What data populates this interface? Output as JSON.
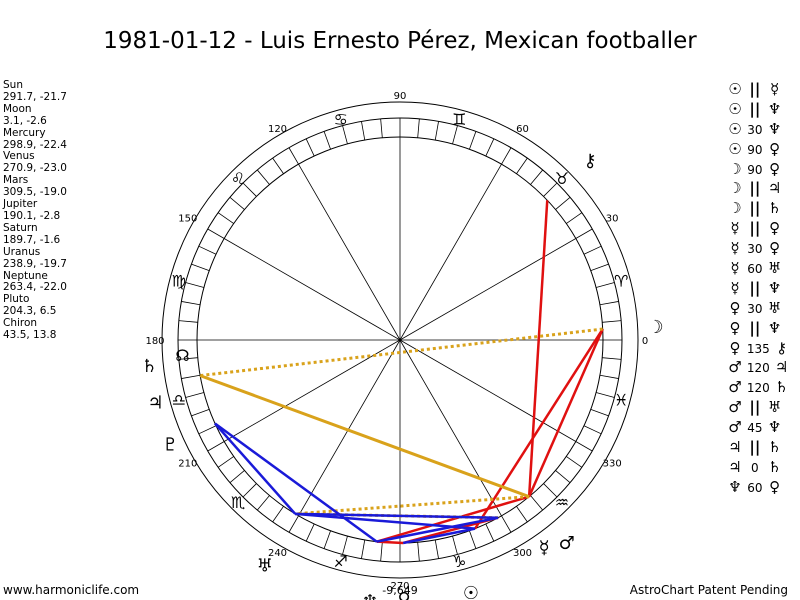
{
  "title": "1981-01-12 - Luis Ernesto Pérez, Mexican footballer",
  "footer_left": "www.harmoniclife.com",
  "footer_right": "AstroChart Patent Pending",
  "degree_labels": [
    "90",
    "60",
    "30",
    "0",
    "330",
    "300",
    "270",
    "240",
    "210",
    "180",
    "150",
    "120"
  ],
  "asc_label": "-9,649",
  "planets": [
    {
      "name": "Sun",
      "coords": "291.7, -21.7",
      "glyph": "☉",
      "lon": 291.7
    },
    {
      "name": "Moon",
      "coords": "3.1, -2.6",
      "glyph": "☽",
      "lon": 3.1
    },
    {
      "name": "Mercury",
      "coords": "298.9, -22.4",
      "glyph": "☿",
      "lon": 298.9
    },
    {
      "name": "Venus",
      "coords": "270.9, -23.0",
      "glyph": "♀",
      "lon": 270.9
    },
    {
      "name": "Mars",
      "coords": "309.5, -19.0",
      "glyph": "♂",
      "lon": 309.5
    },
    {
      "name": "Jupiter",
      "coords": "190.1, -2.8",
      "glyph": "♃",
      "lon": 190.1
    },
    {
      "name": "Saturn",
      "coords": "189.7, -1.6",
      "glyph": "♄",
      "lon": 189.7
    },
    {
      "name": "Uranus",
      "coords": "238.9, -19.7",
      "glyph": "♅",
      "lon": 238.9
    },
    {
      "name": "Neptune",
      "coords": "263.4, -22.0",
      "glyph": "♆",
      "lon": 263.4
    },
    {
      "name": "Pluto",
      "coords": "204.3, 6.5",
      "glyph": "♇",
      "lon": 204.3
    },
    {
      "name": "Chiron",
      "coords": "43.5, 13.8",
      "glyph": "⚷",
      "lon": 43.5
    }
  ],
  "signs": [
    {
      "name": "aries",
      "glyph": "♈"
    },
    {
      "name": "taurus",
      "glyph": "♉"
    },
    {
      "name": "gemini",
      "glyph": "♊"
    },
    {
      "name": "cancer",
      "glyph": "♋"
    },
    {
      "name": "leo",
      "glyph": "♌"
    },
    {
      "name": "virgo",
      "glyph": "♍"
    },
    {
      "name": "libra",
      "glyph": "♎"
    },
    {
      "name": "scorpio",
      "glyph": "♏"
    },
    {
      "name": "sagittarius",
      "glyph": "♐"
    },
    {
      "name": "capricorn",
      "glyph": "♑"
    },
    {
      "name": "aquarius",
      "glyph": "♒"
    },
    {
      "name": "pisces",
      "glyph": "♓"
    }
  ],
  "node_glyph": "☊",
  "aspects": [
    {
      "p1": "☉",
      "aspect": "||",
      "p2": "☿"
    },
    {
      "p1": "☉",
      "aspect": "||",
      "p2": "♆"
    },
    {
      "p1": "☉",
      "aspect": "30",
      "p2": "♆"
    },
    {
      "p1": "☉",
      "aspect": "90",
      "p2": "♀"
    },
    {
      "p1": "☽",
      "aspect": "90",
      "p2": "♀"
    },
    {
      "p1": "☽",
      "aspect": "||",
      "p2": "♃"
    },
    {
      "p1": "☽",
      "aspect": "||",
      "p2": "♄"
    },
    {
      "p1": "☿",
      "aspect": "||",
      "p2": "♀"
    },
    {
      "p1": "☿",
      "aspect": "30",
      "p2": "♀"
    },
    {
      "p1": "☿",
      "aspect": "60",
      "p2": "♅"
    },
    {
      "p1": "☿",
      "aspect": "||",
      "p2": "♆"
    },
    {
      "p1": "♀",
      "aspect": "30",
      "p2": "♅"
    },
    {
      "p1": "♀",
      "aspect": "||",
      "p2": "♆"
    },
    {
      "p1": "♀",
      "aspect": "135",
      "p2": "⚷"
    },
    {
      "p1": "♂",
      "aspect": "120",
      "p2": "♃"
    },
    {
      "p1": "♂",
      "aspect": "120",
      "p2": "♄"
    },
    {
      "p1": "♂",
      "aspect": "||",
      "p2": "♅"
    },
    {
      "p1": "♂",
      "aspect": "45",
      "p2": "♆"
    },
    {
      "p1": "♃",
      "aspect": "||",
      "p2": "♄"
    },
    {
      "p1": "♃",
      "aspect": "0",
      "p2": "♄"
    },
    {
      "p1": "♆",
      "aspect": "60",
      "p2": "♀"
    }
  ],
  "colors": {
    "red": "#e01010",
    "blue": "#1a1ad8",
    "gold": "#d9a21b"
  }
}
